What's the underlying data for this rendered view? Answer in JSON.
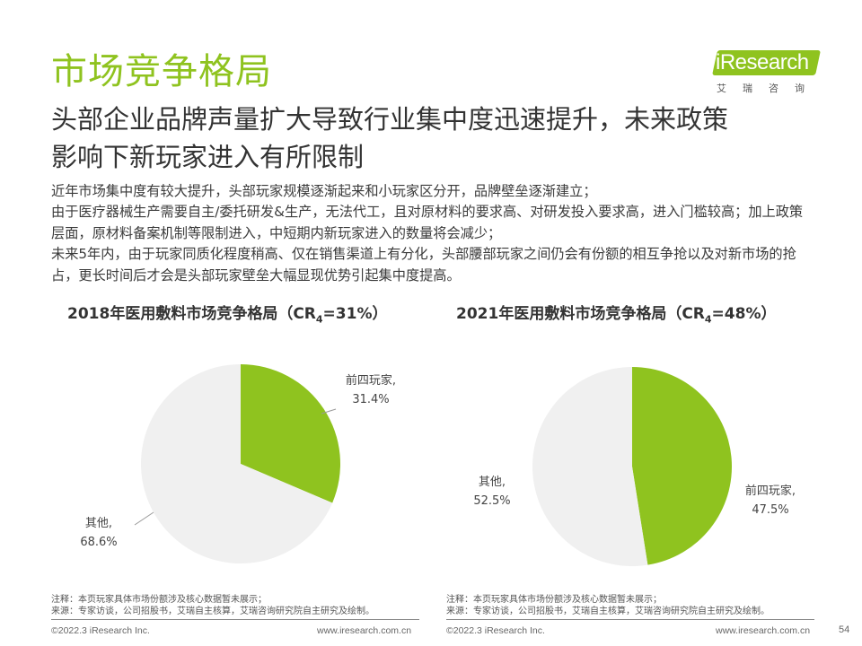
{
  "section_title": "市场竞争格局",
  "logo": {
    "brand": "iResearch",
    "sub": "艾瑞咨询"
  },
  "headline": {
    "line1": "头部企业品牌声量扩大导致行业集中度迅速提升，未来政策",
    "line2": "影响下新玩家进入有所限制"
  },
  "body": {
    "p1": "近年市场集中度有较大提升，头部玩家规模逐渐起来和小玩家区分开，品牌壁垒逐渐建立；",
    "p2": "由于医疗器械生产需要自主/委托研发&生产，无法代工，且对原材料的要求高、对研发投入要求高，进入门槛较高；加上政策层面，原材料备案机制等限制进入，中短期内新玩家进入的数量将会减少；",
    "p3": "未来5年内，由于玩家同质化程度稍高、仅在销售渠道上有分化，头部腰部玩家之间仍会有份额的相互争抢以及对新市场的抢占，更长时间后才会是头部玩家壁垒大幅显现优势引起集中度提高。"
  },
  "colors": {
    "accent": "#8fc31f",
    "other": "#f0f0f0"
  },
  "chart_data": [
    {
      "type": "pie",
      "title_prefix": "2018年医用敷料市场竞争格局（CR",
      "title_sub": "4",
      "title_suffix": "=31%）",
      "slices": [
        {
          "name": "前四玩家,",
          "value": 31.4,
          "label": "31.4%"
        },
        {
          "name": "其他,",
          "value": 68.6,
          "label": "68.6%"
        }
      ]
    },
    {
      "type": "pie",
      "title_prefix": "2021年医用敷料市场竞争格局（CR",
      "title_sub": "4",
      "title_suffix": "=48%）",
      "slices": [
        {
          "name": "前四玩家,",
          "value": 47.5,
          "label": "47.5%"
        },
        {
          "name": "其他,",
          "value": 52.5,
          "label": "52.5%"
        }
      ]
    }
  ],
  "notes": {
    "note": "注释：本页玩家具体市场份额涉及核心数据暂未展示；",
    "source": "来源：专家访谈，公司招股书，艾瑞自主核算，艾瑞咨询研究院自主研究及绘制。"
  },
  "footer": {
    "copyright": "©2022.3 iResearch Inc.",
    "url": "www.iresearch.com.cn",
    "page": "54"
  }
}
